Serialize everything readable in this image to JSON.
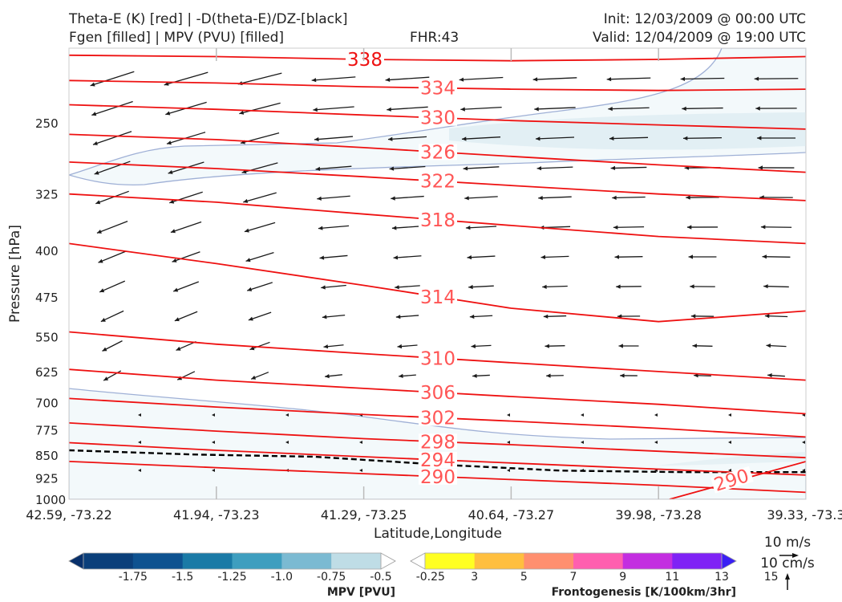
{
  "header": {
    "left_line1": "Theta-E (K) [red] | -D(theta-E)/DZ-[black]",
    "left_line2": "Fgen [filled] | MPV (PVU) [filled]",
    "fhr": "FHR:43",
    "init": "Init: 12/03/2009 @ 00:00 UTC",
    "valid": "Valid: 12/04/2009 @ 19:00 UTC"
  },
  "chart_data": {
    "type": "cross-section",
    "xlabel": "Latitude,Longitude",
    "ylabel": "Pressure [hPa]",
    "x_ticks": [
      "42.59, -73.22",
      "41.94, -73.23",
      "41.29, -73.25",
      "40.64, -73.27",
      "39.98, -73.28",
      "39.33, -73.3"
    ],
    "y_ticks": [
      250,
      325,
      400,
      475,
      550,
      625,
      700,
      775,
      850,
      925,
      1000
    ],
    "ylim": [
      1000,
      190
    ],
    "y_scale": "log",
    "theta_e_contours": [
      {
        "label": "338",
        "p": [
          195,
          196,
          198,
          199,
          198,
          196
        ]
      },
      {
        "label": "334",
        "p": [
          214,
          216,
          219,
          221,
          222,
          221
        ]
      },
      {
        "label": "330",
        "p": [
          234,
          238,
          243,
          248,
          252,
          256
        ]
      },
      {
        "label": "326",
        "p": [
          261,
          266,
          274,
          283,
          292,
          300
        ]
      },
      {
        "label": "322",
        "p": [
          289,
          296,
          305,
          315,
          325,
          333
        ]
      },
      {
        "label": "318",
        "p": [
          325,
          335,
          350,
          365,
          380,
          390
        ]
      },
      {
        "label": "314",
        "p": [
          390,
          420,
          455,
          495,
          520,
          500
        ]
      },
      {
        "label": "310",
        "p": [
          540,
          565,
          585,
          605,
          625,
          645
        ]
      },
      {
        "label": "306",
        "p": [
          620,
          645,
          665,
          685,
          705,
          730
        ]
      },
      {
        "label": "302",
        "p": [
          690,
          712,
          732,
          750,
          770,
          795
        ]
      },
      {
        "label": "298",
        "p": [
          755,
          778,
          800,
          818,
          838,
          858
        ]
      },
      {
        "label": "294",
        "p": [
          812,
          835,
          855,
          875,
          895,
          915
        ]
      },
      {
        "label": "290",
        "p": [
          870,
          890,
          910,
          930,
          950,
          975
        ]
      }
    ],
    "theta_e_surface_label": "290",
    "dthetae_dz_contour_p": [
      835,
      848,
      855,
      880,
      900,
      905,
      905
    ],
    "mpv_colorbar": {
      "title": "MPV [PVU]",
      "ticks": [
        "-1.75",
        "-1.5",
        "-1.25",
        "-1.0",
        "-0.75",
        "-0.5",
        "-0.25"
      ],
      "colors": [
        "#08306b",
        "#0b3f7a",
        "#0e5290",
        "#1a7aa6",
        "#3e9ebf",
        "#7bbad2",
        "#bfdde6",
        "#ffffff"
      ]
    },
    "fgen_colorbar": {
      "title": "Frontogenesis [K/100km/3hr]",
      "ticks": [
        "3",
        "5",
        "7",
        "9",
        "11",
        "13",
        "15"
      ],
      "colors": [
        "#ffffff",
        "#ffff22",
        "#ffbf3f",
        "#ff8f6f",
        "#ff5faf",
        "#c32ee0",
        "#7f22f5",
        "#3a1ff5"
      ]
    },
    "wind_reference": {
      "u_label": "10 m/s",
      "w_label": "10 cm/s"
    }
  }
}
